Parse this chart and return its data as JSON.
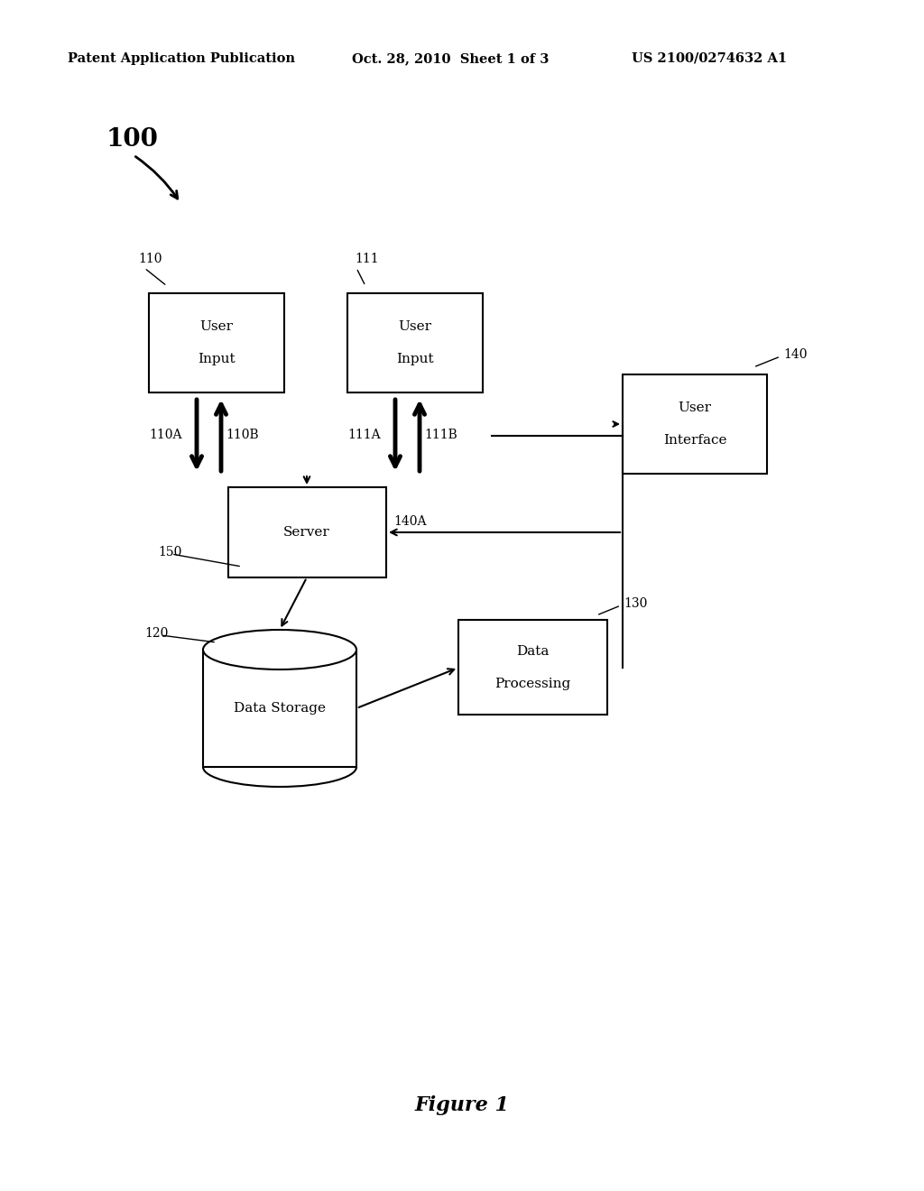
{
  "bg_color": "#ffffff",
  "header_left": "Patent Application Publication",
  "header_mid": "Oct. 28, 2010  Sheet 1 of 3",
  "header_right": "US 2100/0274632 A1",
  "figure_label": "Figure 1",
  "label_100": "100",
  "label_110": "110",
  "label_111": "111",
  "label_110A": "110A",
  "label_110B": "110B",
  "label_111A": "111A",
  "label_111B": "111B",
  "label_140": "140",
  "label_140A": "140A",
  "label_150": "150",
  "label_120": "120",
  "label_130": "130",
  "box_color": "#000000",
  "box_fill": "#ffffff",
  "text_color": "#000000",
  "line_color": "#000000"
}
